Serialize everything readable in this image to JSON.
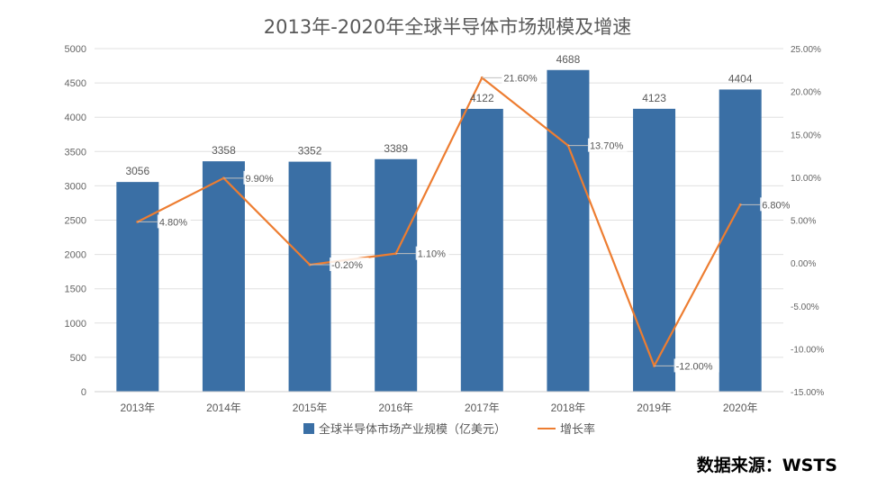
{
  "title": "2013年-2020年全球半导体市场规模及增速",
  "source": "数据来源：WSTS",
  "chart_data": {
    "type": "bar",
    "categories": [
      "2013年",
      "2014年",
      "2015年",
      "2016年",
      "2017年",
      "2018年",
      "2019年",
      "2020年"
    ],
    "series": [
      {
        "name": "全球半导体市场产业规模（亿美元）",
        "type": "bar",
        "axis": "left",
        "values": [
          3056,
          3358,
          3352,
          3389,
          4122,
          4688,
          4123,
          4404
        ],
        "labels": [
          "3056",
          "3358",
          "3352",
          "3389",
          "4122",
          "4688",
          "4123",
          "4404"
        ]
      },
      {
        "name": "增长率",
        "type": "line",
        "axis": "right",
        "values": [
          4.8,
          9.9,
          -0.2,
          1.1,
          21.6,
          13.7,
          -12.0,
          6.8
        ],
        "labels": [
          "4.80%",
          "9.90%",
          "-0.20%",
          "1.10%",
          "21.60%",
          "13.70%",
          "-12.00%",
          "6.80%"
        ]
      }
    ],
    "y_left": {
      "min": 0,
      "max": 5000,
      "ticks": [
        "0",
        "500",
        "1000",
        "1500",
        "2000",
        "2500",
        "3000",
        "3500",
        "4000",
        "4500",
        "5000"
      ]
    },
    "y_right": {
      "min": -15,
      "max": 25,
      "ticks": [
        "-15.00%",
        "-10.00%",
        "-5.00%",
        "0.00%",
        "5.00%",
        "10.00%",
        "15.00%",
        "20.00%",
        "25.00%"
      ]
    },
    "grid": true,
    "legend": "bottom",
    "colors": {
      "bar": "#3a6fa5",
      "line": "#ed7d31"
    }
  }
}
